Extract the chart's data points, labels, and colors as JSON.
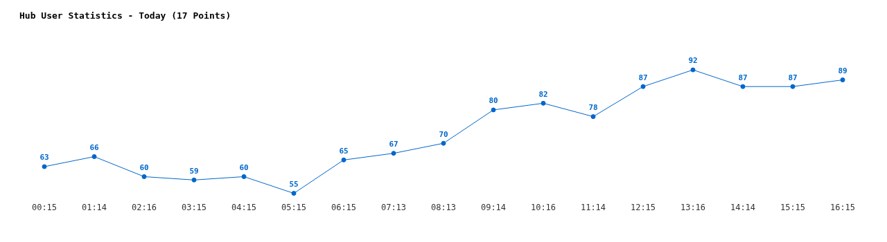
{
  "chart_data": {
    "type": "line",
    "title": "Hub User Statistics - Today (17 Points)",
    "categories": [
      "00:15",
      "01:14",
      "02:16",
      "03:15",
      "04:15",
      "05:15",
      "06:15",
      "07:13",
      "08:13",
      "09:14",
      "10:16",
      "11:14",
      "12:15",
      "13:16",
      "14:14",
      "15:15",
      "16:15"
    ],
    "series": [
      {
        "color": "#0066cc",
        "values": [
          63,
          66,
          60,
          59,
          60,
          55,
          65,
          67,
          70,
          80,
          82,
          78,
          87,
          92,
          87,
          87,
          89
        ]
      }
    ],
    "data_labels": true,
    "marker": "circle",
    "line_style": "solid",
    "grid": false,
    "legend": false,
    "tick_labels": "x"
  }
}
